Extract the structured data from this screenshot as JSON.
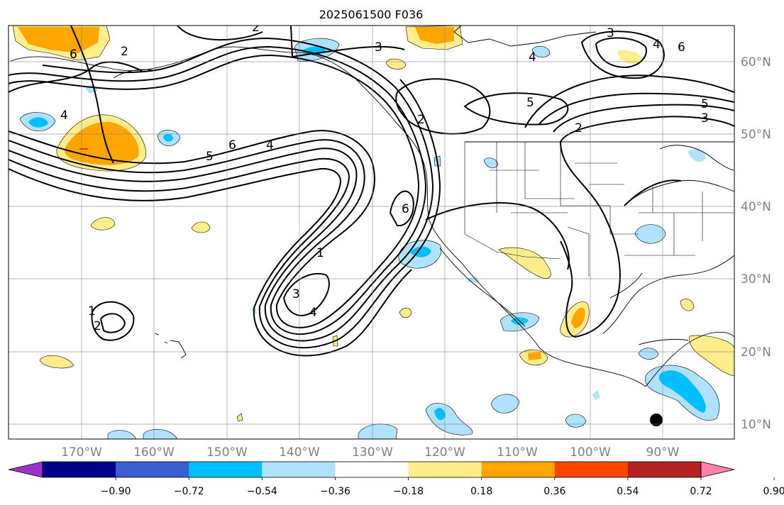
{
  "title": "2025061500 F036",
  "lat_labels": [
    "60°N",
    "50°N",
    "40°N",
    "30°N",
    "20°N",
    "10°N"
  ],
  "lon_labels": [
    "170°W",
    "160°W",
    "150°W",
    "140°W",
    "130°W",
    "120°W",
    "110°W",
    "100°W",
    "90°W"
  ],
  "colorbar": {
    "colors": [
      "#9932cc",
      "#00008b",
      "#3a5fcd",
      "#00bfff",
      "#b0e2ff",
      "#ffffff",
      "#ffec8b",
      "#ffa500",
      "#ff4500",
      "#b22222",
      "#ff82ab"
    ],
    "tick_labels": [
      "−0.90",
      "−0.72",
      "−0.54",
      "−0.36",
      "−0.18",
      "0.18",
      "0.36",
      "0.54",
      "0.72",
      "0.90"
    ]
  },
  "contour_labels": [
    "2",
    "3",
    "3",
    "4",
    "4",
    "5",
    "5",
    "3",
    "6",
    "6",
    "4",
    "5",
    "6",
    "4",
    "1",
    "3",
    "4",
    "2",
    "1",
    "2",
    "6",
    "2",
    "2"
  ],
  "colors": {
    "land_line": "#000000",
    "grid": "#808080",
    "contour": "#000000"
  }
}
